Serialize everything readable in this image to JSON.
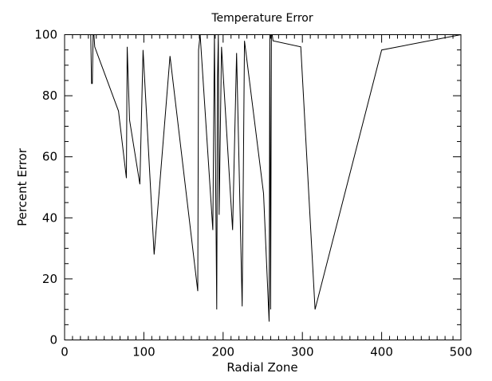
{
  "chart_data": {
    "type": "line",
    "title": "Temperature Error",
    "xlabel": "Radial Zone",
    "ylabel": "Percent Error",
    "xlim": [
      0,
      500
    ],
    "ylim": [
      0,
      100
    ],
    "xticks": [
      0,
      100,
      200,
      300,
      400,
      500
    ],
    "yticks": [
      0,
      20,
      40,
      60,
      80,
      100
    ],
    "grid": false,
    "line_color": "#000000",
    "series": [
      {
        "x": [
          0,
          33,
          34,
          35,
          36,
          37,
          38,
          68,
          78,
          79,
          82,
          95,
          99,
          113,
          133,
          168,
          169,
          171,
          187,
          189,
          192,
          193,
          194,
          195,
          198,
          212,
          217,
          224,
          227,
          251,
          258,
          259,
          260,
          261,
          262,
          263,
          298,
          316,
          400,
          500
        ],
        "values": [
          100,
          100,
          84,
          84,
          100,
          100,
          96,
          75,
          53,
          96,
          72,
          51,
          95,
          28,
          93,
          16,
          95,
          100,
          36,
          100,
          10,
          86,
          100,
          41,
          96,
          36,
          94,
          11,
          98,
          48,
          6,
          100,
          10,
          100,
          100,
          98,
          96,
          10,
          95,
          100
        ]
      }
    ]
  }
}
